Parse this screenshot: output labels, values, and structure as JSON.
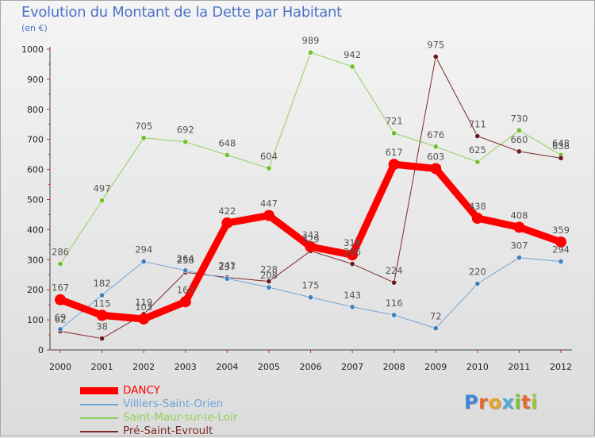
{
  "title": "Evolution du Montant de la Dette par Habitant",
  "subtitle": "(en €)",
  "brand": {
    "text": "Proxiti",
    "letters": [
      "P",
      "r",
      "o",
      "x",
      "i",
      "t",
      "i"
    ],
    "letter_colors": [
      "#3f86d8",
      "#e66b2a",
      "#e6a52a",
      "#53a9d9",
      "#7bbf3a",
      "#e66b2a",
      "#9bc63a"
    ]
  },
  "chart_data": {
    "type": "line",
    "title": "Evolution du Montant de la Dette par Habitant",
    "ylabel": "(en €)",
    "xlabel": "",
    "x": [
      2000,
      2001,
      2002,
      2003,
      2004,
      2005,
      2006,
      2007,
      2008,
      2009,
      2010,
      2011,
      2012
    ],
    "ylim": [
      0,
      1000
    ],
    "yticks": [
      0,
      100,
      200,
      300,
      400,
      500,
      600,
      700,
      800,
      900,
      1000
    ],
    "series": [
      {
        "name": "Saint-Maur-sur-le-Loir",
        "color": "#8fd05a",
        "marker": "#6fbf2f",
        "width": 1,
        "values": [
          286,
          497,
          705,
          692,
          648,
          604,
          989,
          942,
          721,
          676,
          625,
          730,
          648
        ]
      },
      {
        "name": "Pré-Saint-Evroult",
        "color": "#7a2a2a",
        "marker": "#6a1a1a",
        "width": 1,
        "values": [
          62,
          38,
          119,
          258,
          241,
          228,
          329,
          286,
          224,
          975,
          711,
          660,
          638
        ]
      },
      {
        "name": "Villiers-Saint-Orien",
        "color": "#6fa3d8",
        "marker": "#3f7fc0",
        "width": 1,
        "values": [
          69,
          182,
          294,
          264,
          237,
          208,
          175,
          143,
          116,
          72,
          220,
          307,
          294
        ]
      },
      {
        "name": "DANCY",
        "color": "#ff0000",
        "marker": "#ff0000",
        "width": 9,
        "values": [
          167,
          115,
          103,
          160,
          422,
          447,
          343,
          316,
          617,
          603,
          438,
          408,
          359
        ]
      }
    ],
    "legend_order": [
      "DANCY",
      "Villiers-Saint-Orien",
      "Saint-Maur-sur-le-Loir",
      "Pré-Saint-Evroult"
    ],
    "legend_position": "bottom-left",
    "grid": false
  }
}
